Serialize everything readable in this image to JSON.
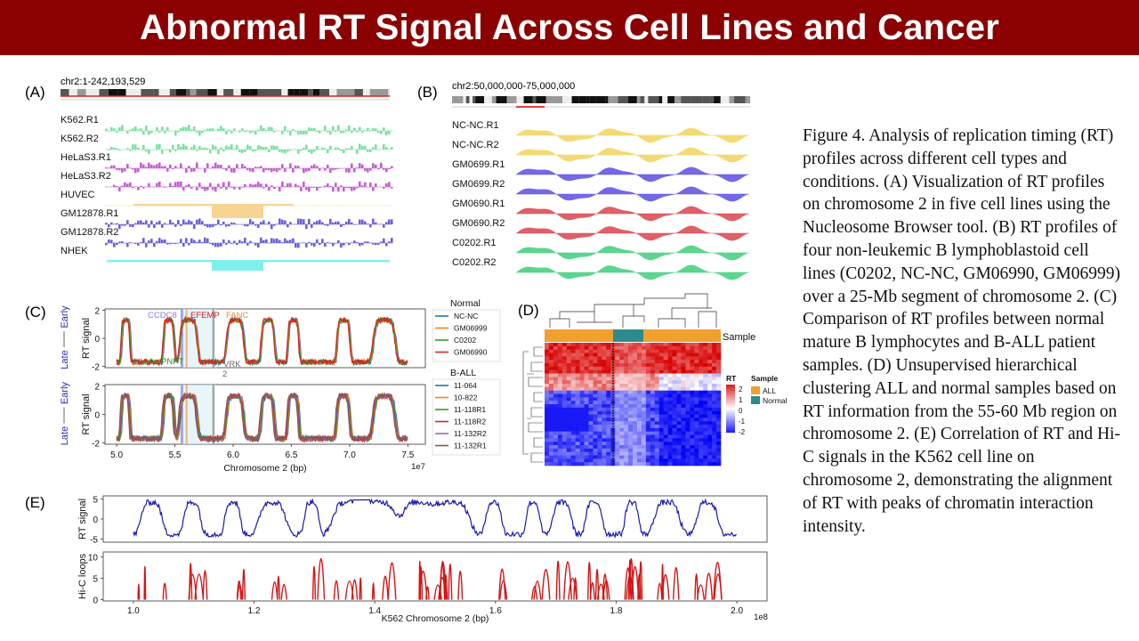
{
  "title": "Abnormal RT Signal Across Cell Lines and Cancer",
  "caption": "Figure 4. Analysis of replication timing (RT) profiles across different cell types and conditions. (A) Visualization of RT profiles on chromosome 2 in five cell lines using the Nucleosome Browser tool. (B) RT profiles of four non-leukemic B lymphoblastoid cell lines (C0202, NC-NC, GM06990, GM06999) over a 25-Mb segment of chromosome 2. (C) Comparison of RT profiles between normal mature B lymphocytes and B-ALL patient samples. (D) Unsupervised hierarchical clustering ALL and normal samples based on RT information from the 55-60 Mb region on chromosome 2. (E) Correlation of RT and Hi-C signals in the K562 cell line on chromosome 2, demonstrating the alignment of RT with peaks of chromatin interaction intensity.",
  "panels": {
    "A": {
      "label": "(A)",
      "region": "chr2:1-242,193,529",
      "tracks": [
        "K562.R1",
        "K562.R2",
        "HeLaS3.R1",
        "HeLaS3.R2",
        "HUVEC",
        "GM12878.R1",
        "GM12878.R2",
        "NHEK"
      ],
      "track_colors": [
        "#7ee0a4",
        "#7ee0a4",
        "#c45fd0",
        "#c45fd0",
        "#f7d492",
        "#6a62d8",
        "#6a62d8",
        "#7ff0ec"
      ]
    },
    "B": {
      "label": "(B)",
      "region": "chr2:50,000,000-75,000,000",
      "tracks": [
        "NC-NC.R1",
        "NC-NC.R2",
        "GM0699.R1",
        "GM0699.R2",
        "GM0690.R1",
        "GM0690.R2",
        "C0202.R1",
        "C0202.R2"
      ],
      "track_colors": [
        "#f2d45c",
        "#f2d45c",
        "#5a4fe0",
        "#5a4fe0",
        "#d9444e",
        "#d9444e",
        "#3fcf7a",
        "#3fcf7a"
      ]
    },
    "C": {
      "label": "(C)",
      "ylabel": "RT signal",
      "late": "Late",
      "early": "Early",
      "xlabel": "Chromosome 2 (bp)",
      "x_exponent": "1e7",
      "xticks": [
        "5.0",
        "5.5",
        "6.0",
        "6.5",
        "7.0",
        "7.5"
      ],
      "yticks": [
        "2",
        "0",
        "-2"
      ],
      "genes": [
        "CCDC8",
        "EFEMP",
        "FANC",
        "PNPT",
        "VRK",
        "2"
      ],
      "normal_title": "Normal",
      "normal_series": [
        "NC-NC",
        "GM06999",
        "C0202",
        "GM06990"
      ],
      "normal_colors": [
        "#1f77b4",
        "#ff7f0e",
        "#2ca02c",
        "#d62728"
      ],
      "ball_title": "B-ALL",
      "ball_series": [
        "11-064",
        "10-822",
        "11-118R1",
        "11-118R2",
        "11-132R2",
        "11-132R1"
      ],
      "ball_colors": [
        "#1f77b4",
        "#ff7f0e",
        "#2ca02c",
        "#d62728",
        "#9467bd",
        "#8c564b"
      ]
    },
    "D": {
      "label": "(D)",
      "sample_label": "Sample",
      "legend_rt": "RT",
      "legend_rt_ticks": [
        "2",
        "1",
        "0",
        "-1",
        "-2"
      ],
      "legend_sample": "Sample",
      "legend_items": [
        "ALL",
        "Normal"
      ],
      "colors": {
        "ALL": "#f0a030",
        "Normal": "#2e8b8b",
        "high": "#d7191c",
        "low": "#1a1aff"
      }
    },
    "E": {
      "label": "(E)",
      "ylabel_top": "RT signal",
      "ylabel_bottom": "Hi-C loops",
      "yticks_top": [
        "5",
        "0",
        "-5"
      ],
      "yticks_bottom": [
        "10",
        "5",
        "0"
      ],
      "xticks": [
        "1.0",
        "1.2",
        "1.4",
        "1.6",
        "1.8",
        "2.0"
      ],
      "xlabel": "K562 Chromosome 2 (bp)",
      "x_exponent": "1e8",
      "colors": {
        "rt": "#1a1ab0",
        "hic": "#d41414"
      }
    }
  }
}
